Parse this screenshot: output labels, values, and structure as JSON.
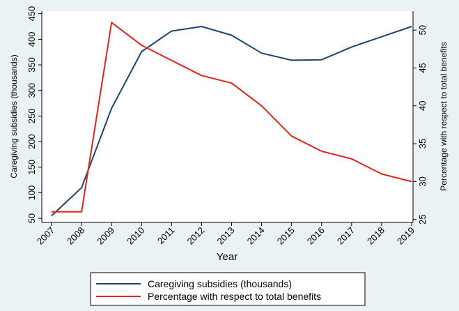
{
  "chart_data": {
    "type": "line",
    "x": [
      2007,
      2008,
      2009,
      2010,
      2011,
      2012,
      2013,
      2014,
      2015,
      2016,
      2017,
      2018,
      2019
    ],
    "xlabel": "Year",
    "ylabel_left": "Caregiving subsidies (thousands)",
    "ylabel_right": "Percentage with respect to total benefits",
    "ylim_left": [
      42,
      455
    ],
    "yticks_left": [
      50,
      100,
      150,
      200,
      250,
      300,
      350,
      400,
      450
    ],
    "ylim_right": [
      24.6,
      52.5
    ],
    "yticks_right": [
      25,
      30,
      35,
      40,
      45,
      50
    ],
    "grid": false,
    "legend_position": "bottom",
    "series": [
      {
        "name": "Caregiving subsidies (thousands)",
        "axis": "left",
        "color": "#1a476f",
        "values": [
          55,
          110,
          265,
          376,
          416,
          425,
          408,
          373,
          359,
          360,
          385,
          405,
          425
        ]
      },
      {
        "name": "Percentage with respect to total benefits",
        "axis": "right",
        "color": "#e8201a",
        "values": [
          26,
          26,
          51,
          48,
          46,
          44,
          43,
          40,
          36,
          34,
          33,
          31,
          30
        ]
      }
    ]
  }
}
